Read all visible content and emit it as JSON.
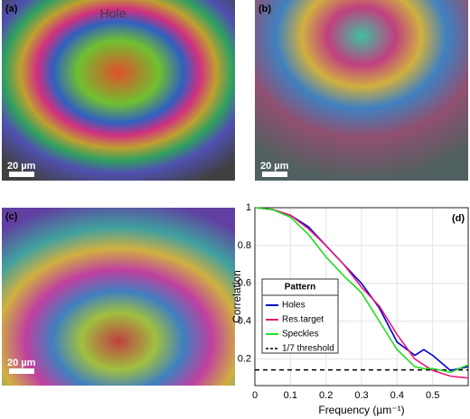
{
  "panels": {
    "a": {
      "label": "(a)",
      "scale": "20 µm",
      "text": "Hole"
    },
    "b": {
      "label": "(b)",
      "scale": "20 µm"
    },
    "c": {
      "label": "(c)",
      "scale": "20 µm"
    }
  },
  "chart_data": {
    "type": "line",
    "panel_label": "(d)",
    "xlabel": "Frequency (µm⁻¹)",
    "ylabel": "Correlation",
    "x": [
      0,
      0.05,
      0.1,
      0.15,
      0.2,
      0.25,
      0.3,
      0.35,
      0.4,
      0.45,
      0.475,
      0.5,
      0.55,
      0.6
    ],
    "series": [
      {
        "name": "Holes",
        "color": "#0000cc",
        "values": [
          1,
          0.99,
          0.96,
          0.9,
          0.8,
          0.7,
          0.6,
          0.47,
          0.29,
          0.22,
          0.25,
          0.22,
          0.14,
          0.16
        ]
      },
      {
        "name": "Res.target",
        "color": "#e8167c",
        "values": [
          1,
          0.99,
          0.96,
          0.89,
          0.8,
          0.7,
          0.58,
          0.48,
          0.33,
          0.2,
          0.17,
          0.14,
          0.11,
          0.1
        ]
      },
      {
        "name": "Speckles",
        "color": "#22dd22",
        "values": [
          1,
          0.99,
          0.95,
          0.86,
          0.74,
          0.64,
          0.55,
          0.4,
          0.25,
          0.16,
          0.15,
          0.15,
          0.13,
          0.17
        ]
      }
    ],
    "threshold": {
      "name": "1/7 threshold",
      "value": 0.143,
      "color": "#000000"
    },
    "legend_title": "Pattern",
    "xlim": [
      0,
      0.6
    ],
    "ylim": [
      0.06,
      1
    ],
    "xticks": [
      0,
      0.1,
      0.2,
      0.3,
      0.4,
      0.5
    ],
    "yticks": [
      0.2,
      0.4,
      0.6,
      0.8,
      1
    ],
    "grid": true
  }
}
